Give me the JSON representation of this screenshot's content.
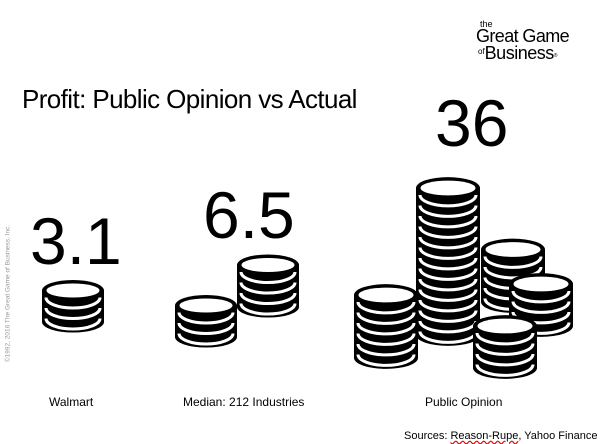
{
  "logo": {
    "line1": "the",
    "line2": "Great Game",
    "line3_of": "of",
    "line3_business": "Business",
    "tm": "®"
  },
  "title": "Profit: Public Opinion vs Actual",
  "copyright": "©1992, 2016 The Great Game of Business, Inc.",
  "sources": {
    "prefix": "Sources: ",
    "underlined": "Reason-Rupe",
    "suffix": ", Yahoo Finance"
  },
  "chart_data": {
    "type": "bar",
    "title": "Profit: Public Opinion vs Actual",
    "categories": [
      "Walmart",
      "Median: 212 Industries",
      "Public Opinion"
    ],
    "values": [
      3.1,
      6.5,
      36
    ],
    "value_labels": [
      "3.1",
      "6.5",
      "36"
    ],
    "mark": "stacked coin icons"
  }
}
